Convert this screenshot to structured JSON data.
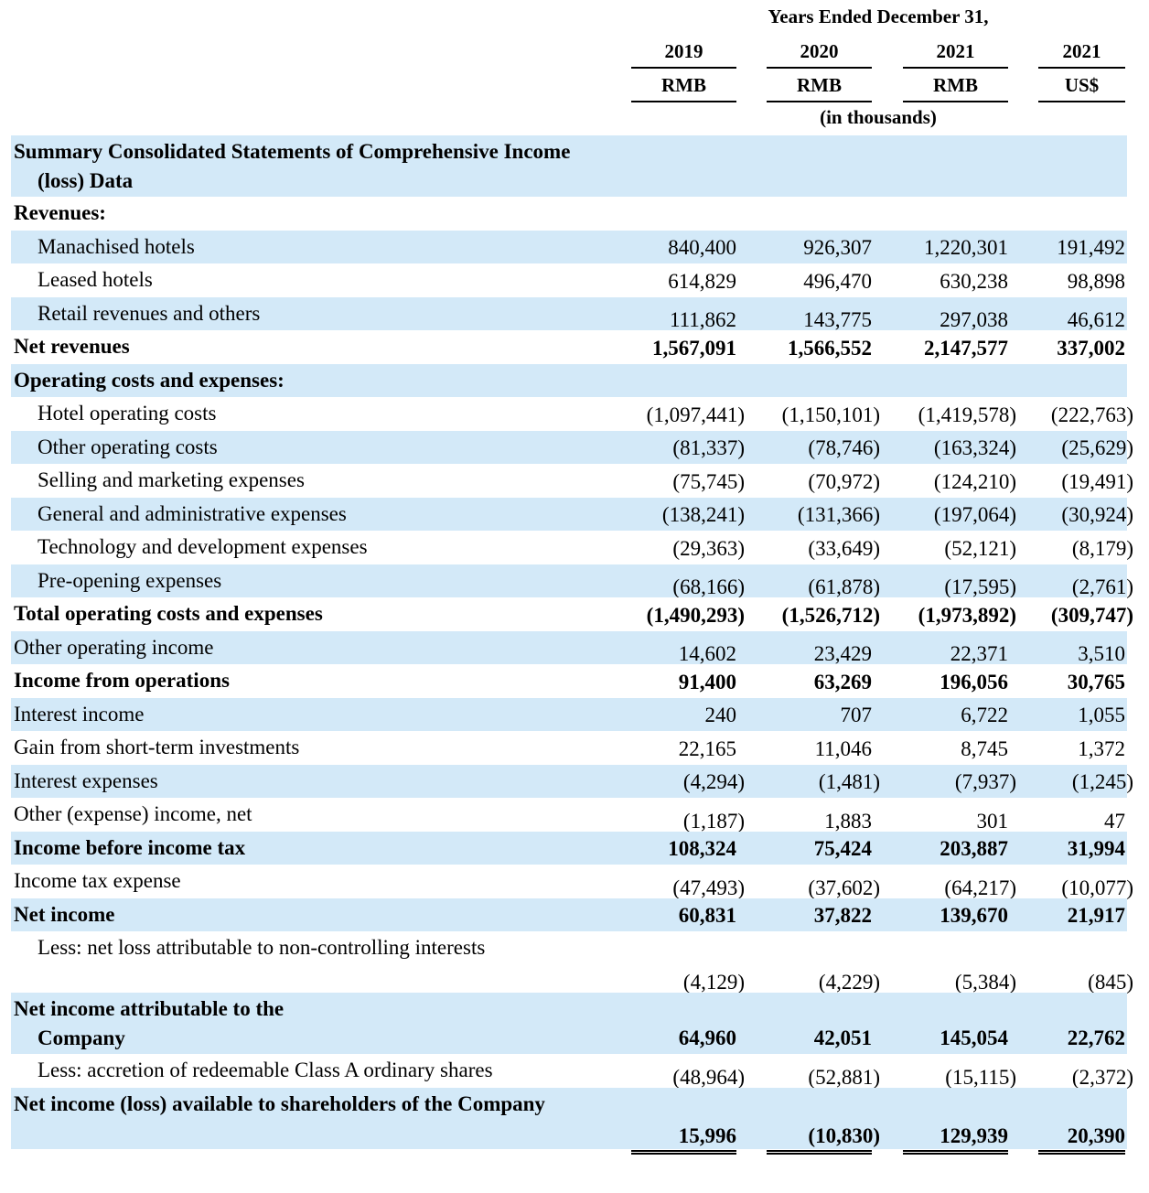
{
  "header": {
    "title": "Years Ended December 31,",
    "columns": [
      {
        "year": "2019",
        "currency": "RMB"
      },
      {
        "year": "2020",
        "currency": "RMB"
      },
      {
        "year": "2021",
        "currency": "RMB"
      },
      {
        "year": "2021",
        "currency": "US$"
      }
    ],
    "unit": "(in thousands)"
  },
  "table": {
    "rows": [
      {
        "label": "Summary Consolidated Statements of Comprehensive Income (loss) Data"
      },
      {
        "label": "Revenues:"
      },
      {
        "label": "Manachised hotels",
        "values": [
          "840,400",
          "926,307",
          "1,220,301",
          "191,492"
        ]
      },
      {
        "label": "Leased hotels",
        "values": [
          "614,829",
          "496,470",
          "630,238",
          "98,898"
        ]
      },
      {
        "label": "Retail revenues and others",
        "values": [
          "111,862",
          "143,775",
          "297,038",
          "46,612"
        ]
      },
      {
        "label": "Net revenues",
        "values": [
          "1,567,091",
          "1,566,552",
          "2,147,577",
          "337,002"
        ]
      },
      {
        "label": "Operating costs and expenses:"
      },
      {
        "label": "Hotel operating costs",
        "values": [
          "(1,097,441)",
          "(1,150,101)",
          "(1,419,578)",
          "(222,763)"
        ]
      },
      {
        "label": "Other operating costs",
        "values": [
          "(81,337)",
          "(78,746)",
          "(163,324)",
          "(25,629)"
        ]
      },
      {
        "label": "Selling and marketing expenses",
        "values": [
          "(75,745)",
          "(70,972)",
          "(124,210)",
          "(19,491)"
        ]
      },
      {
        "label": "General and administrative expenses",
        "values": [
          "(138,241)",
          "(131,366)",
          "(197,064)",
          "(30,924)"
        ]
      },
      {
        "label": "Technology and development expenses",
        "values": [
          "(29,363)",
          "(33,649)",
          "(52,121)",
          "(8,179)"
        ]
      },
      {
        "label": "Pre-opening expenses",
        "values": [
          "(68,166)",
          "(61,878)",
          "(17,595)",
          "(2,761)"
        ]
      },
      {
        "label": "Total operating costs and expenses",
        "values": [
          "(1,490,293)",
          "(1,526,712)",
          "(1,973,892)",
          "(309,747)"
        ]
      },
      {
        "label": "Other operating income",
        "values": [
          "14,602",
          "23,429",
          "22,371",
          "3,510"
        ]
      },
      {
        "label": "Income from operations",
        "values": [
          "91,400",
          "63,269",
          "196,056",
          "30,765"
        ]
      },
      {
        "label": "Interest income",
        "values": [
          "240",
          "707",
          "6,722",
          "1,055"
        ]
      },
      {
        "label": "Gain from short-term investments",
        "values": [
          "22,165",
          "11,046",
          "8,745",
          "1,372"
        ]
      },
      {
        "label": "Interest expenses",
        "values": [
          "(4,294)",
          "(1,481)",
          "(7,937)",
          "(1,245)"
        ]
      },
      {
        "label": "Other (expense) income, net",
        "values": [
          "(1,187)",
          "1,883",
          "301",
          "47"
        ]
      },
      {
        "label": "Income before income tax",
        "values": [
          "108,324",
          "75,424",
          "203,887",
          "31,994"
        ]
      },
      {
        "label": "Income tax expense",
        "values": [
          "(47,493)",
          "(37,602)",
          "(64,217)",
          "(10,077)"
        ]
      },
      {
        "label": "Net income",
        "values": [
          "60,831",
          "37,822",
          "139,670",
          "21,917"
        ]
      },
      {
        "label": "Less: net loss attributable to non-controlling interests",
        "values": [
          "(4,129)",
          "(4,229)",
          "(5,384)",
          "(845)"
        ]
      },
      {
        "label": "Net income attributable to the Company",
        "values": [
          "64,960",
          "42,051",
          "145,054",
          "22,762"
        ]
      },
      {
        "label": "Less: accretion of redeemable Class A ordinary shares",
        "values": [
          "(48,964)",
          "(52,881)",
          "(15,115)",
          "(2,372)"
        ]
      },
      {
        "label": "Net income (loss) available to shareholders of the Company",
        "values": [
          "15,996",
          "(10,830)",
          "129,939",
          "20,390"
        ]
      }
    ]
  }
}
